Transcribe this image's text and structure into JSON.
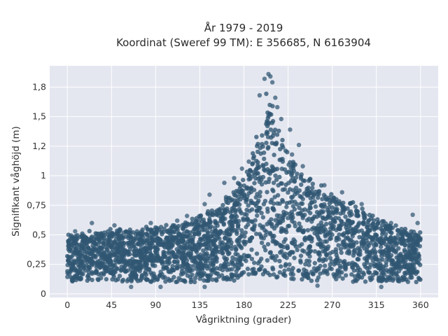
{
  "chart_data": {
    "type": "scatter",
    "title_lines": [
      "År 1979 - 2019",
      "Koordinat (Sweref 99 TM): E 356685, N 6163904"
    ],
    "xlabel": "Vågriktning (grader)",
    "ylabel": "Signifikant våghöjd (m)",
    "xlim": [
      -18,
      378
    ],
    "ylim": [
      -0.03,
      1.93
    ],
    "x_ticks": [
      0,
      45,
      90,
      135,
      180,
      225,
      270,
      315,
      360
    ],
    "x_tick_labels": [
      "0",
      "45",
      "90",
      "135",
      "180",
      "225",
      "270",
      "315",
      "360"
    ],
    "y_ticks": [
      0,
      0.25,
      0.5,
      0.75,
      1,
      1.25,
      1.5,
      1.75
    ],
    "y_tick_labels": [
      "0",
      "0,25",
      "0,5",
      "0,75",
      "1",
      "1,2",
      "1,5",
      "1,8"
    ],
    "grid": true,
    "plot_background": "#e5e7f0",
    "marker_color": "#2f5672",
    "envelope": {
      "x": [
        0,
        15,
        30,
        45,
        60,
        75,
        90,
        105,
        120,
        135,
        150,
        165,
        180,
        190,
        197,
        203,
        210,
        217,
        225,
        235,
        250,
        270,
        290,
        305,
        320,
        340,
        360
      ],
      "upper": [
        0.52,
        0.53,
        0.55,
        0.56,
        0.56,
        0.57,
        0.58,
        0.6,
        0.62,
        0.68,
        0.76,
        0.86,
        1.02,
        1.28,
        1.55,
        1.78,
        1.6,
        1.42,
        1.24,
        1.1,
        0.98,
        0.88,
        0.8,
        0.72,
        0.64,
        0.58,
        0.53
      ],
      "lower": [
        0.1,
        0.1,
        0.1,
        0.1,
        0.1,
        0.1,
        0.1,
        0.1,
        0.1,
        0.1,
        0.1,
        0.11,
        0.12,
        0.13,
        0.14,
        0.14,
        0.14,
        0.13,
        0.13,
        0.12,
        0.11,
        0.11,
        0.1,
        0.1,
        0.1,
        0.1,
        0.1
      ]
    },
    "sample_points": [
      {
        "x": 205,
        "y": 1.86
      },
      {
        "x": 207,
        "y": 1.84
      },
      {
        "x": 201,
        "y": 1.82
      },
      {
        "x": 209,
        "y": 1.79
      },
      {
        "x": 212,
        "y": 1.66
      },
      {
        "x": 196,
        "y": 1.68
      },
      {
        "x": 214,
        "y": 1.58
      },
      {
        "x": 218,
        "y": 1.48
      },
      {
        "x": 227,
        "y": 1.39
      },
      {
        "x": 229,
        "y": 1.18
      },
      {
        "x": 236,
        "y": 1.26
      },
      {
        "x": 240,
        "y": 1.08
      },
      {
        "x": 262,
        "y": 0.92
      },
      {
        "x": 280,
        "y": 0.86
      },
      {
        "x": 300,
        "y": 0.76
      },
      {
        "x": 302,
        "y": 0.68
      },
      {
        "x": 330,
        "y": 0.6
      },
      {
        "x": 352,
        "y": 0.67
      },
      {
        "x": 357,
        "y": 0.6
      },
      {
        "x": 140,
        "y": 0.76
      },
      {
        "x": 145,
        "y": 0.84
      },
      {
        "x": 160,
        "y": 0.94
      },
      {
        "x": 170,
        "y": 0.98
      },
      {
        "x": 178,
        "y": 1.06
      },
      {
        "x": 185,
        "y": 1.12
      },
      {
        "x": 122,
        "y": 0.66
      },
      {
        "x": 112,
        "y": 0.62
      },
      {
        "x": 85,
        "y": 0.6
      },
      {
        "x": 48,
        "y": 0.58
      },
      {
        "x": 25,
        "y": 0.6
      },
      {
        "x": 8,
        "y": 0.53
      },
      {
        "x": 65,
        "y": 0.06
      },
      {
        "x": 95,
        "y": 0.06
      },
      {
        "x": 140,
        "y": 0.06
      },
      {
        "x": 255,
        "y": 0.07
      },
      {
        "x": 320,
        "y": 0.06
      }
    ]
  }
}
